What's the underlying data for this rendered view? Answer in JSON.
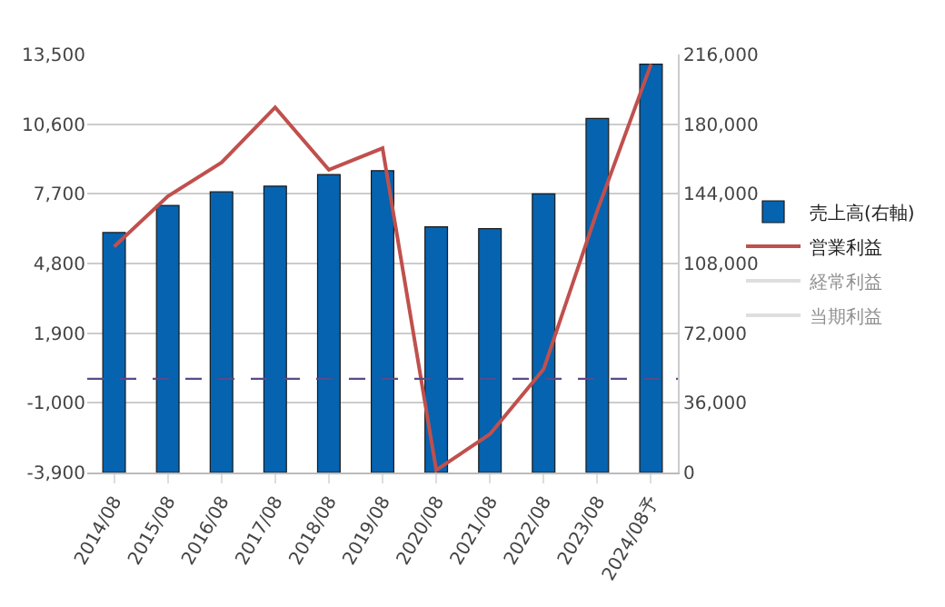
{
  "chart_data": {
    "type": "bar",
    "categories": [
      "2014/08",
      "2015/08",
      "2016/08",
      "2017/08",
      "2018/08",
      "2019/08",
      "2020/08",
      "2021/08",
      "2022/08",
      "2023/08",
      "2024/08予"
    ],
    "series": [
      {
        "name": "売上高(右軸)",
        "axis": "y2",
        "color": "#0563b0",
        "values": [
          124000,
          138000,
          145000,
          148000,
          154000,
          156000,
          127000,
          126000,
          144000,
          183000,
          211000
        ]
      },
      {
        "name": "営業利益",
        "type": "line",
        "axis": "y",
        "color": "#c0504d",
        "values": [
          5500,
          7600,
          9000,
          11300,
          8700,
          9600,
          -3800,
          -2300,
          400,
          7000,
          13100
        ]
      },
      {
        "name": "経常利益",
        "type": "line",
        "axis": "y",
        "color": "#bfbfbf",
        "values": [
          null,
          null,
          null,
          null,
          null,
          null,
          null,
          null,
          null,
          null,
          null
        ]
      },
      {
        "name": "当期利益",
        "type": "line",
        "axis": "y",
        "color": "#bfbfbf",
        "values": [
          null,
          null,
          null,
          null,
          null,
          null,
          null,
          null,
          null,
          null,
          null
        ]
      }
    ],
    "ylim": [
      -3900,
      13500
    ],
    "yticks": [
      {
        "value": -3900,
        "label": "-3,900"
      },
      {
        "value": -1000,
        "label": "-1,000"
      },
      {
        "value": 1900,
        "label": "1,900"
      },
      {
        "value": 4800,
        "label": "4,800"
      },
      {
        "value": 7700,
        "label": "7,700"
      },
      {
        "value": 10600,
        "label": "10,600"
      },
      {
        "value": 13500,
        "label": "13,500"
      }
    ],
    "y2lim": [
      0,
      216000
    ],
    "y2ticks": [
      0,
      {
        "value": 36000,
        "label": "36,000"
      },
      {
        "value": 72000,
        "label": "72,000"
      },
      {
        "value": 108000,
        "label": "108,000"
      },
      {
        "value": 144000,
        "label": "144,000"
      },
      {
        "value": 180000,
        "label": "180,000"
      },
      {
        "value": 216000,
        "label": "216,000"
      }
    ],
    "ref_lines": [
      {
        "axis": "y",
        "value": 0,
        "color": "#5a4a8a",
        "line_style": "dashed"
      }
    ],
    "grid": "y",
    "legend": "right",
    "marker": "none",
    "line_style": "solid"
  }
}
